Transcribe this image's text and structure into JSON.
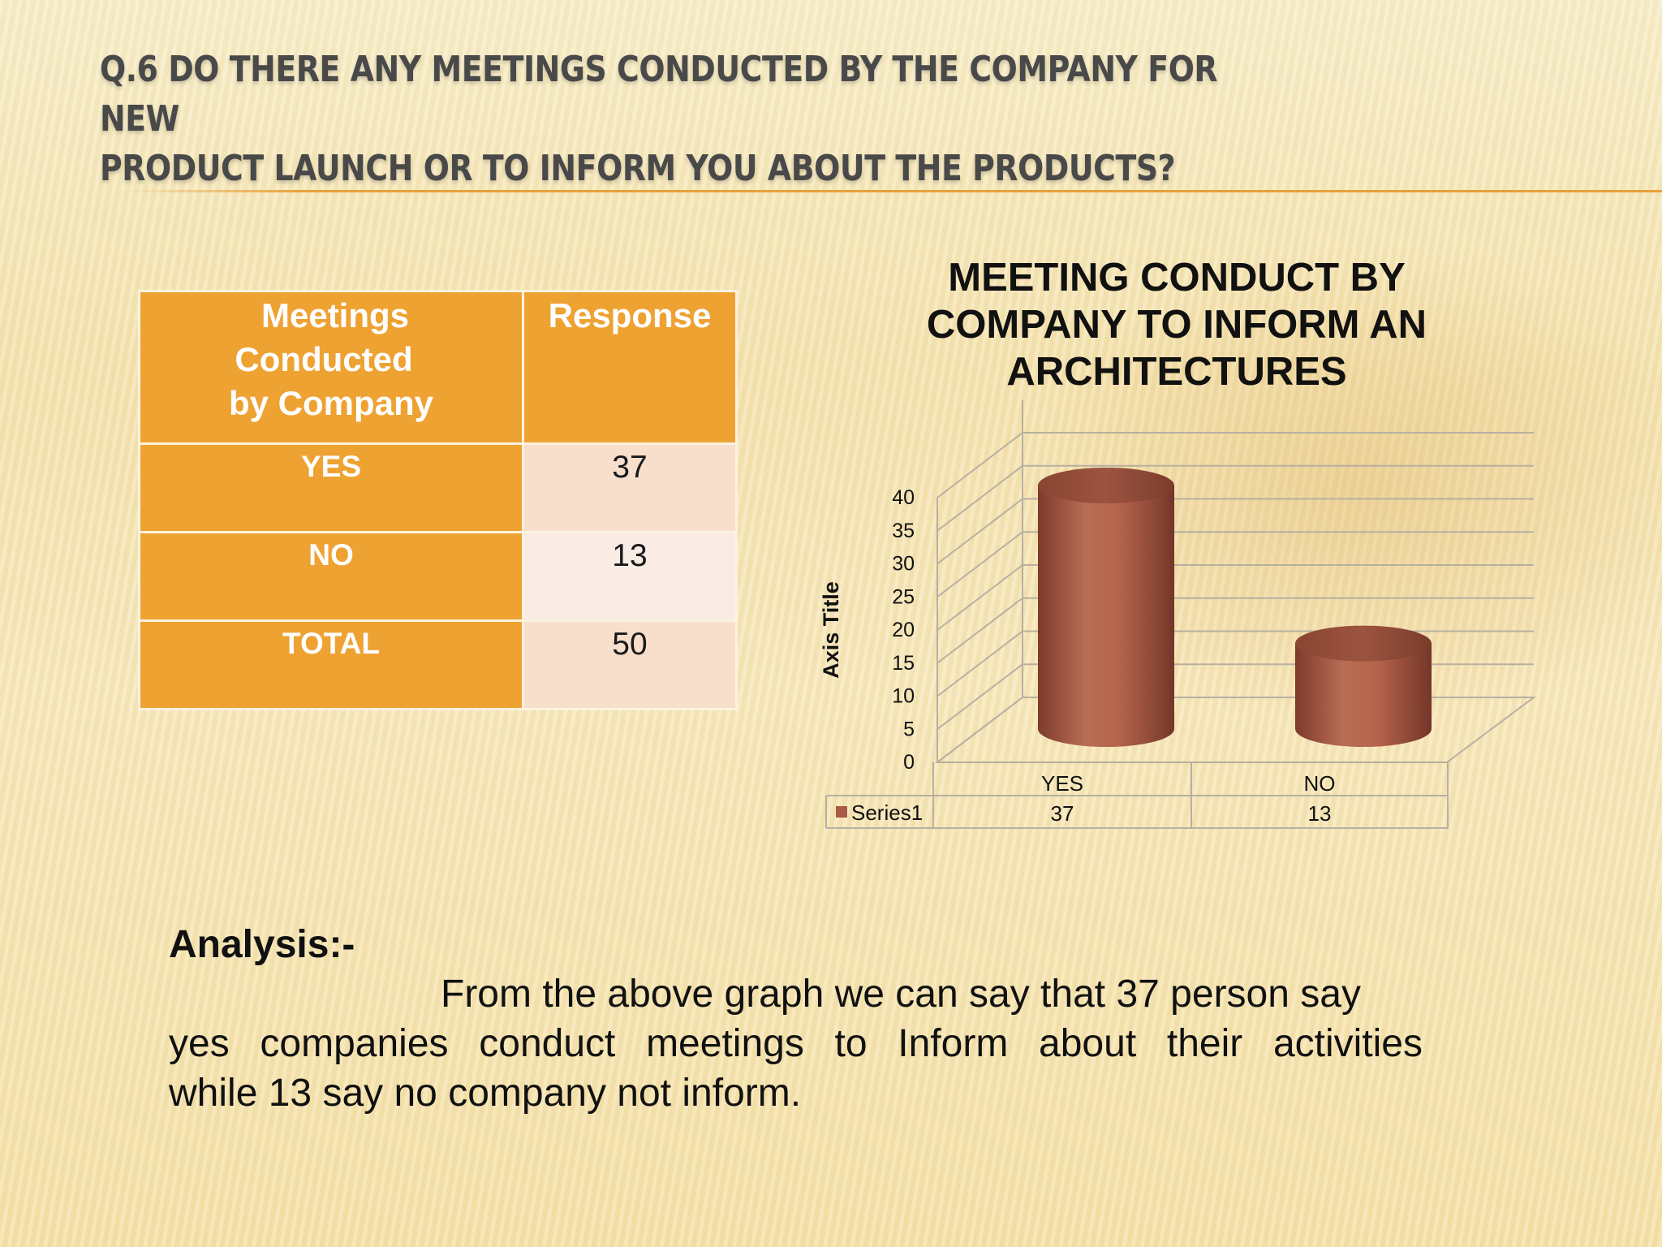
{
  "slide": {
    "title_line1": "Q.6  Do there any meetings conducted by the company for new",
    "title_line2": "product launch or to inform you about the products?"
  },
  "table": {
    "header_left_lines": [
      "Meetings",
      "Conducted",
      "by Company"
    ],
    "header_right": "Response",
    "rows": [
      {
        "label": "YES",
        "value": "37"
      },
      {
        "label": "NO",
        "value": "13"
      },
      {
        "label": "TOTAL",
        "value": "50"
      }
    ]
  },
  "chart_data": {
    "type": "bar",
    "style": "3d-cylinder",
    "title_lines": [
      "MEETING CONDUCT BY",
      "COMPANY TO INFORM AN",
      "ARCHITECTURES"
    ],
    "ylabel": "Axis Title",
    "xlabel": "",
    "categories": [
      "YES",
      "NO"
    ],
    "series": [
      {
        "name": "Series1",
        "values": [
          37,
          13
        ],
        "color": "#a85a44"
      }
    ],
    "ylim": [
      0,
      40
    ],
    "yticks": [
      0,
      5,
      10,
      15,
      20,
      25,
      30,
      35,
      40
    ],
    "grid": true,
    "legend": "data-table-below"
  },
  "analysis": {
    "heading": "Analysis:-",
    "line1": "From the above graph we can say that 37 person say",
    "line2": "yes companies conduct meetings to Inform  about their activities",
    "line3": "while 13 say no company not inform."
  },
  "colors": {
    "accent_orange": "#eea232",
    "bar": "#a85a44",
    "title_gray": "#494949"
  }
}
